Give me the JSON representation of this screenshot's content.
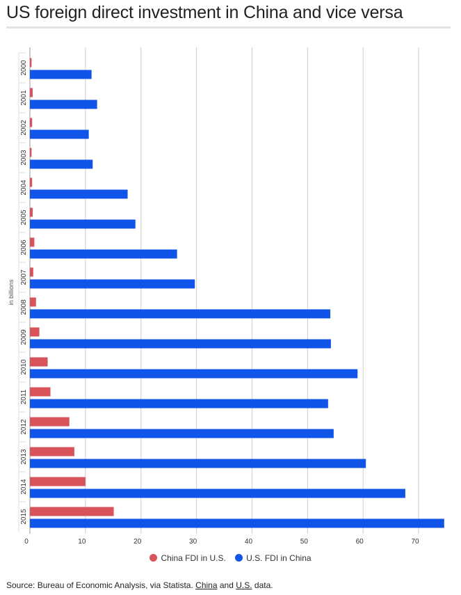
{
  "title": "US foreign direct investment in China and vice versa",
  "colors": {
    "china": "#d9535b",
    "us": "#1155e8",
    "grid": "#cccccc",
    "axis": "#333333"
  },
  "chart_data": {
    "type": "bar",
    "orientation": "horizontal",
    "title": "US foreign direct investment in China and vice versa",
    "xlabel": "",
    "ylabel": "in billions",
    "xlim": [
      0,
      75
    ],
    "x_ticks": [
      0,
      10,
      20,
      30,
      40,
      50,
      60,
      70
    ],
    "grid": true,
    "legend_position": "bottom",
    "categories": [
      "2000",
      "2001",
      "2002",
      "2003",
      "2004",
      "2005",
      "2006",
      "2007",
      "2008",
      "2009",
      "2010",
      "2011",
      "2012",
      "2013",
      "2014",
      "2015"
    ],
    "series": [
      {
        "name": "China FDI in U.S.",
        "color": "#d9535b",
        "values": [
          0.3,
          0.5,
          0.4,
          0.3,
          0.4,
          0.5,
          0.8,
          0.6,
          1.1,
          1.7,
          3.2,
          3.7,
          7.1,
          8.0,
          10.0,
          15.1
        ]
      },
      {
        "name": "U.S. FDI in China",
        "color": "#1155e8",
        "values": [
          11.1,
          12.1,
          10.6,
          11.3,
          17.6,
          19.0,
          26.5,
          29.7,
          54.1,
          54.2,
          59.0,
          53.7,
          54.7,
          60.5,
          67.6,
          74.6
        ]
      }
    ]
  },
  "source": {
    "prefix": "Source: Bureau of Economic Analysis, via Statista.",
    "link_china": "China",
    "middle": "and",
    "link_us": "U.S.",
    "suffix": "data."
  }
}
